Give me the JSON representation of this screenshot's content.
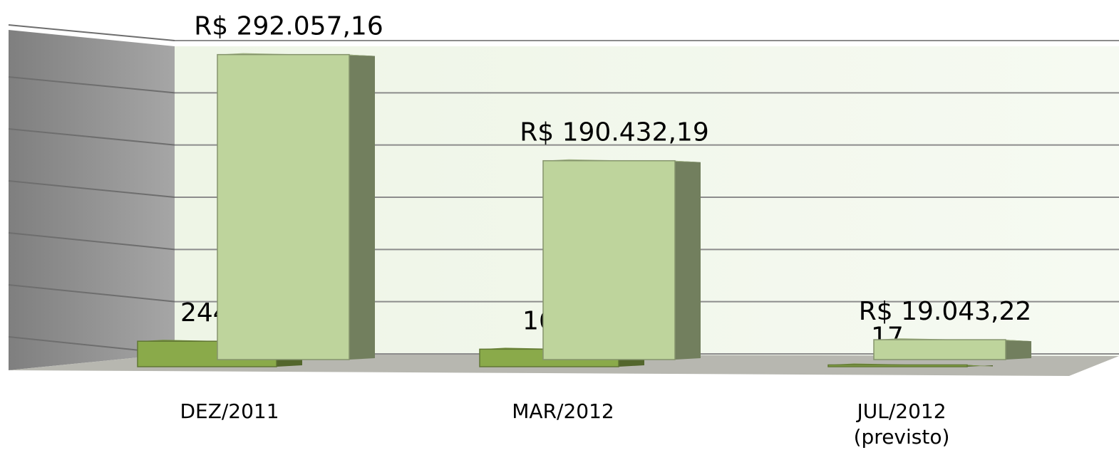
{
  "chart_data": {
    "type": "bar3d",
    "categories": [
      "DEZ/2011",
      "MAR/2012",
      "JUL/2012 (previsto)"
    ],
    "series": [
      {
        "color": "#8aaa4a",
        "values": [
          244,
          168,
          17
        ],
        "axis": "y2"
      },
      {
        "color": "#bed49c",
        "values": [
          292057.16,
          190432.19,
          19043.22
        ],
        "value_labels": [
          "R$ 292.057,16",
          "R$ 190.432,19",
          "R$ 19.043,22"
        ]
      }
    ],
    "ylim": [
      0,
      300000
    ],
    "yticks": [
      0,
      50000,
      100000,
      150000,
      200000,
      250000,
      300000
    ],
    "y2lim": [
      0,
      3000
    ],
    "grid": true
  }
}
